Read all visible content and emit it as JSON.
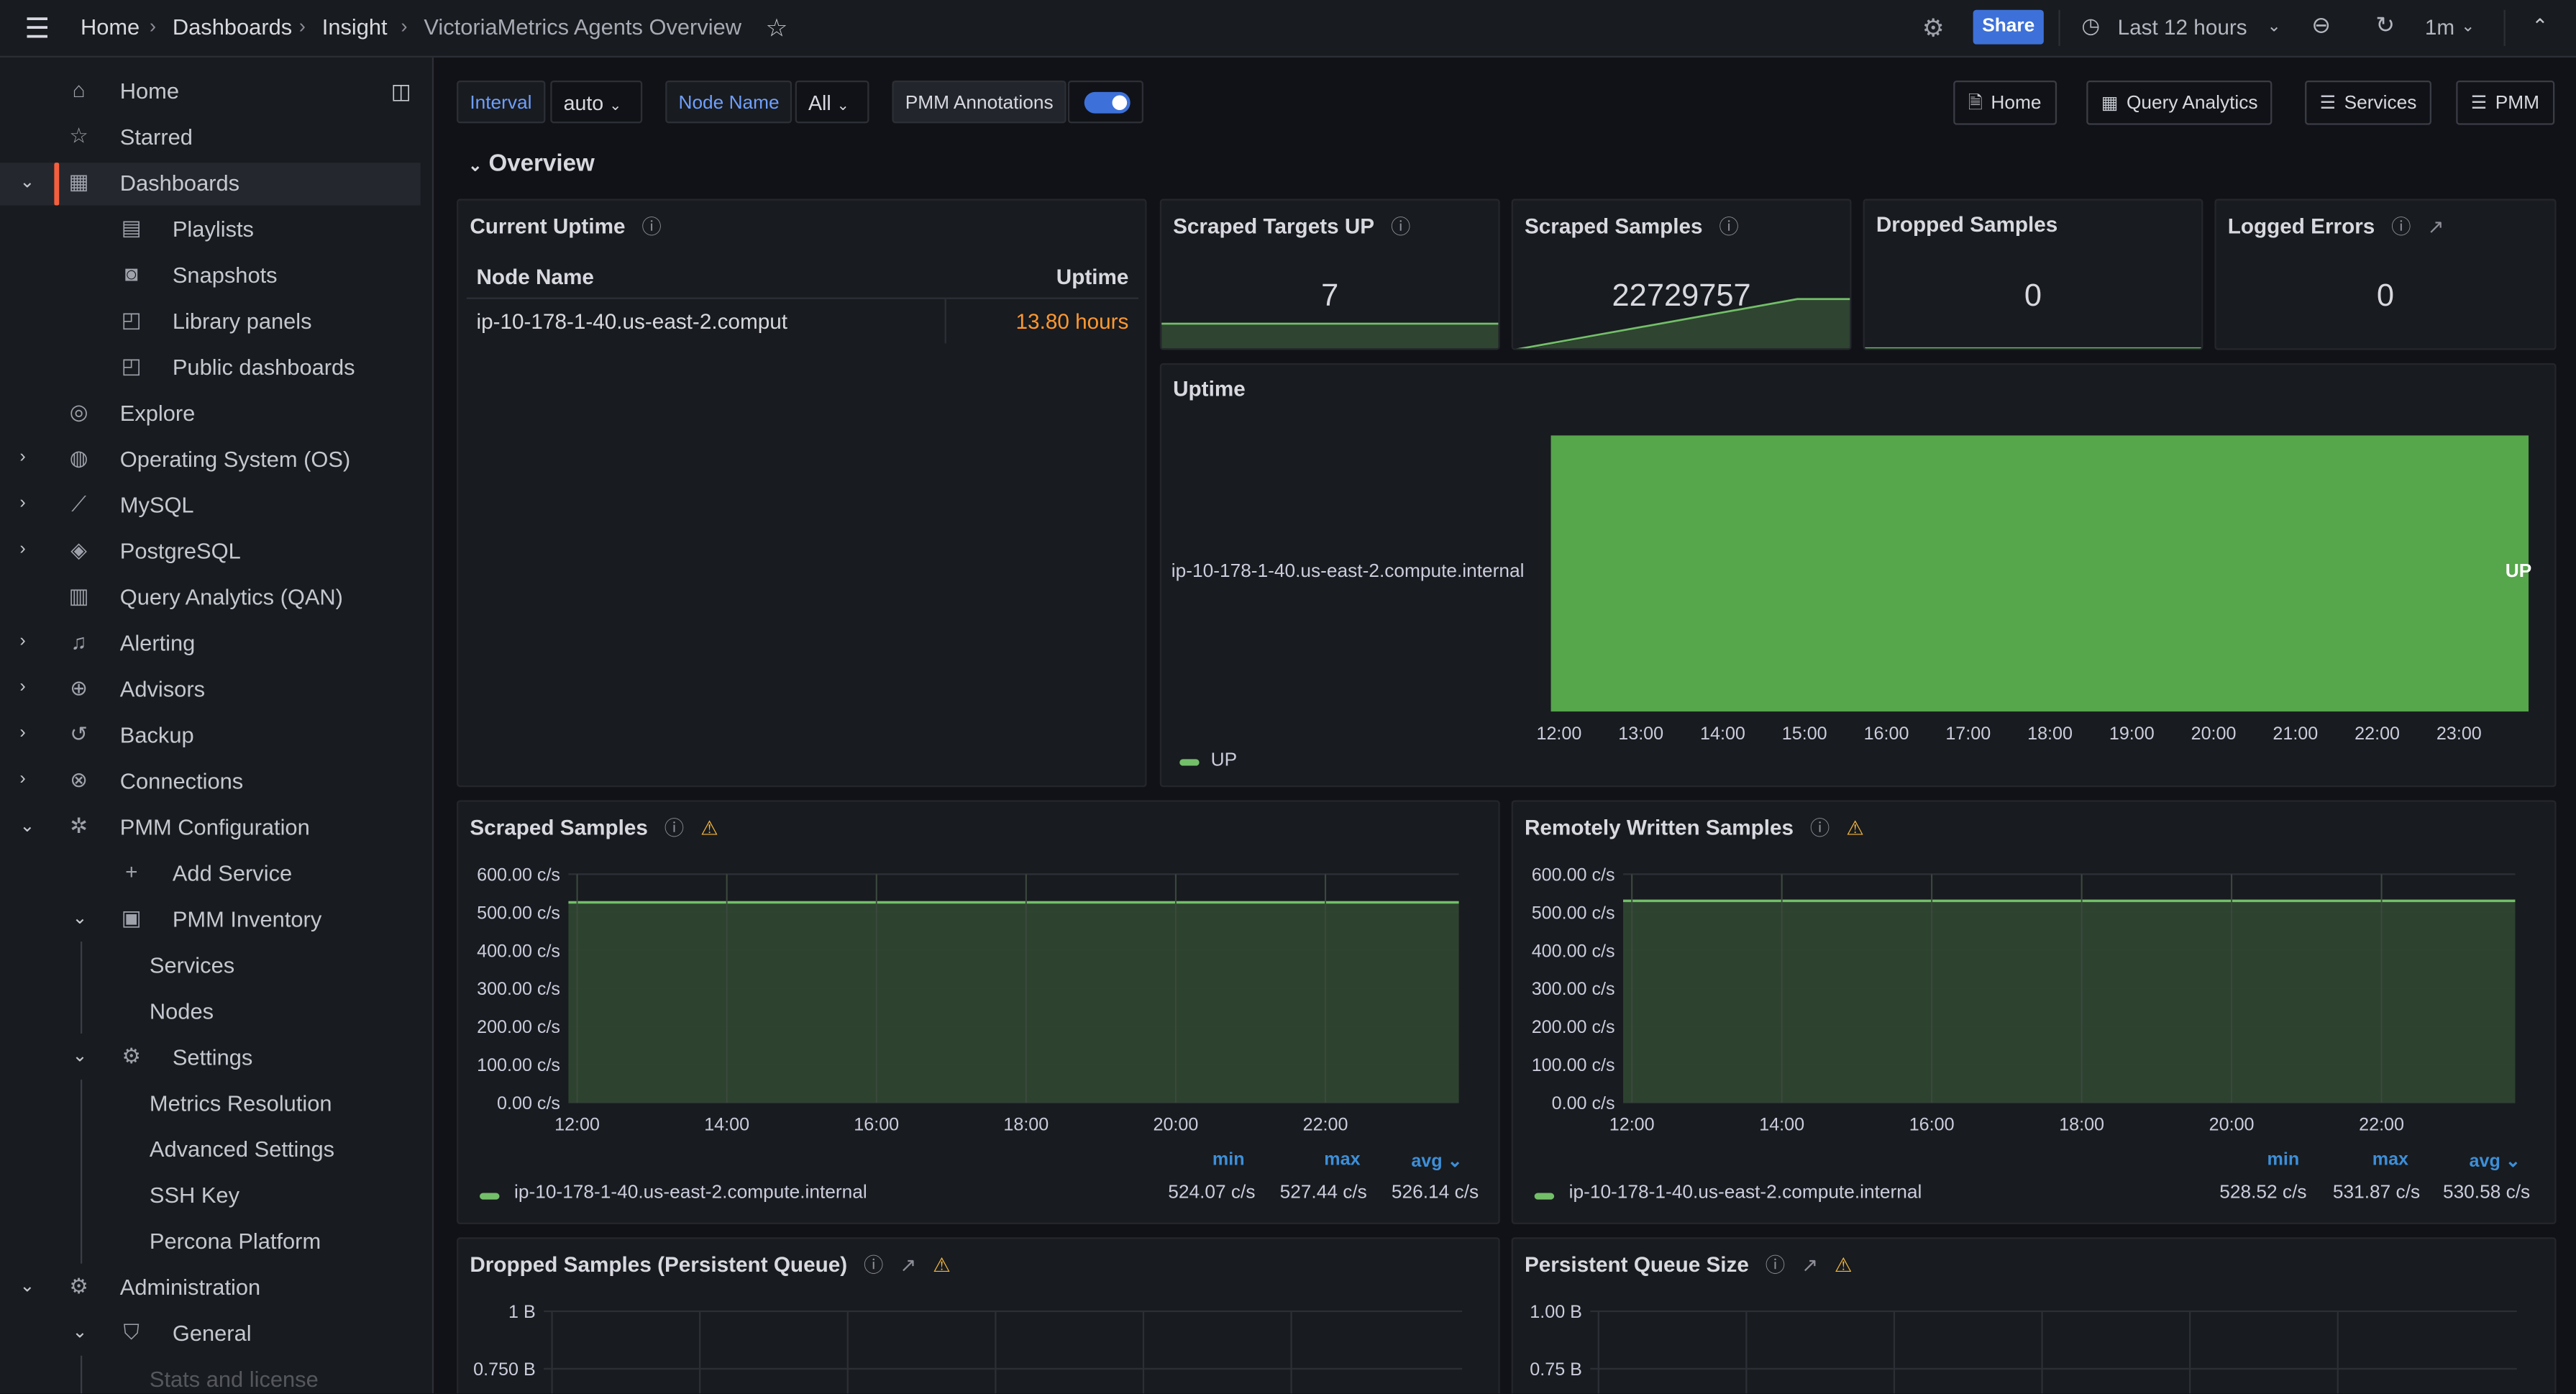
{
  "topbar": {
    "breadcrumbs": [
      "Home",
      "Dashboards",
      "Insight",
      "VictoriaMetrics Agents Overview"
    ],
    "share_label": "Share",
    "time_range": "Last 12 hours",
    "refresh_interval": "1m",
    "share_color": "#3d71d9"
  },
  "sidebar": {
    "items": [
      {
        "label": "Home",
        "icon": "home-icon",
        "level": 0
      },
      {
        "label": "Starred",
        "icon": "star-icon",
        "level": 0
      },
      {
        "label": "Dashboards",
        "icon": "dashboards-icon",
        "level": 0,
        "expanded": true,
        "active": true
      },
      {
        "label": "Playlists",
        "icon": "playlist-icon",
        "level": 1
      },
      {
        "label": "Snapshots",
        "icon": "camera-icon",
        "level": 1
      },
      {
        "label": "Library panels",
        "icon": "library-panels-icon",
        "level": 1
      },
      {
        "label": "Public dashboards",
        "icon": "public-dashboards-icon",
        "level": 1
      },
      {
        "label": "Explore",
        "icon": "compass-icon",
        "level": 0
      },
      {
        "label": "Operating System (OS)",
        "icon": "os-icon",
        "level": 0,
        "expanded": false
      },
      {
        "label": "MySQL",
        "icon": "mysql-icon",
        "level": 0,
        "expanded": false
      },
      {
        "label": "PostgreSQL",
        "icon": "postgresql-icon",
        "level": 0,
        "expanded": false
      },
      {
        "label": "Query Analytics (QAN)",
        "icon": "bar-chart-icon",
        "level": 0
      },
      {
        "label": "Alerting",
        "icon": "bell-icon",
        "level": 0,
        "expanded": false
      },
      {
        "label": "Advisors",
        "icon": "advisors-icon",
        "level": 0,
        "expanded": false
      },
      {
        "label": "Backup",
        "icon": "history-icon",
        "level": 0,
        "expanded": false
      },
      {
        "label": "Connections",
        "icon": "connections-icon",
        "level": 0,
        "expanded": false
      },
      {
        "label": "PMM Configuration",
        "icon": "pmm-config-icon",
        "level": 0,
        "expanded": true
      },
      {
        "label": "Add Service",
        "icon": "plus-icon",
        "level": 1
      },
      {
        "label": "PMM Inventory",
        "icon": "inventory-icon",
        "level": 1,
        "expanded": true
      },
      {
        "label": "Services",
        "level": 2
      },
      {
        "label": "Nodes",
        "level": 2
      },
      {
        "label": "Settings",
        "icon": "gear-icon",
        "level": 1,
        "expanded": true
      },
      {
        "label": "Metrics Resolution",
        "level": 2
      },
      {
        "label": "Advanced Settings",
        "level": 2
      },
      {
        "label": "SSH Key",
        "level": 2
      },
      {
        "label": "Percona Platform",
        "level": 2
      },
      {
        "label": "Administration",
        "icon": "gear-icon",
        "level": 0,
        "expanded": true
      },
      {
        "label": "General",
        "icon": "shield-icon",
        "level": 1,
        "expanded": true
      },
      {
        "label": "Stats and license",
        "level": 2,
        "faded": true
      }
    ]
  },
  "variables": {
    "interval_label": "Interval",
    "interval_value": "auto",
    "node_label": "Node Name",
    "node_value": "All",
    "annotations_label": "PMM Annotations",
    "annotations_on": true
  },
  "links": [
    "Home",
    "Query Analytics",
    "Services",
    "PMM"
  ],
  "row_title": "Overview",
  "panels": {
    "current_uptime": {
      "title": "Current Uptime",
      "col_node": "Node Name",
      "col_uptime": "Uptime",
      "node": "ip-10-178-1-40.us-east-2.comput",
      "uptime": "13.80 hours",
      "uptime_color": "#ff9830"
    },
    "scraped_targets": {
      "title": "Scraped Targets UP",
      "value": "7"
    },
    "scraped_samples_stat": {
      "title": "Scraped Samples",
      "value": "22729757"
    },
    "dropped_samples": {
      "title": "Dropped Samples",
      "value": "0"
    },
    "logged_errors": {
      "title": "Logged Errors",
      "value": "0"
    },
    "uptime": {
      "title": "Uptime",
      "row_label": "ip-10-178-1-40.us-east-2.compute.internal",
      "state": "UP",
      "legend": "UP",
      "color": "#56a64b"
    },
    "scraped_samples": {
      "title": "Scraped Samples",
      "legend": "ip-10-178-1-40.us-east-2.compute.internal",
      "headers": [
        "min",
        "max",
        "avg"
      ],
      "values": [
        "524.07 c/s",
        "527.44 c/s",
        "526.14 c/s"
      ]
    },
    "remote_written": {
      "title": "Remotely Written Samples",
      "legend": "ip-10-178-1-40.us-east-2.compute.internal",
      "headers": [
        "min",
        "max",
        "avg"
      ],
      "values": [
        "528.52 c/s",
        "531.87 c/s",
        "530.58 c/s"
      ]
    },
    "dropped_pq": {
      "title": "Dropped Samples (Persistent Queue)"
    },
    "pq_size": {
      "title": "Persistent Queue Size"
    }
  },
  "chart_data": [
    {
      "type": "area",
      "panel": "Scraped Samples",
      "x_ticks": [
        "12:00",
        "14:00",
        "16:00",
        "18:00",
        "20:00",
        "22:00"
      ],
      "y_ticks": [
        "0.00 c/s",
        "100.00 c/s",
        "200.00 c/s",
        "300.00 c/s",
        "400.00 c/s",
        "500.00 c/s",
        "600.00 c/s"
      ],
      "ylim": [
        0,
        600
      ],
      "xlim": [
        "11:53",
        "23:47"
      ],
      "grid": true,
      "series": [
        {
          "name": "ip-10-178-1-40.us-east-2.compute.internal",
          "color": "#73bf69",
          "x": [
            "11:53",
            "23:47"
          ],
          "y": [
            526,
            526
          ]
        }
      ]
    },
    {
      "type": "area",
      "panel": "Remotely Written Samples",
      "x_ticks": [
        "12:00",
        "14:00",
        "16:00",
        "18:00",
        "20:00",
        "22:00"
      ],
      "y_ticks": [
        "0.00 c/s",
        "100.00 c/s",
        "200.00 c/s",
        "300.00 c/s",
        "400.00 c/s",
        "500.00 c/s",
        "600.00 c/s"
      ],
      "ylim": [
        0,
        600
      ],
      "xlim": [
        "11:53",
        "23:47"
      ],
      "grid": true,
      "series": [
        {
          "name": "ip-10-178-1-40.us-east-2.compute.internal",
          "color": "#73bf69",
          "x": [
            "11:53",
            "23:47"
          ],
          "y": [
            530,
            530
          ]
        }
      ]
    },
    {
      "type": "line",
      "panel": "Dropped Samples (Persistent Queue)",
      "y_ticks": [
        "1 B",
        "0.750 B"
      ],
      "grid": true,
      "series": []
    },
    {
      "type": "line",
      "panel": "Persistent Queue Size",
      "y_ticks": [
        "1.00 B",
        "0.75 B"
      ],
      "grid": true,
      "series": []
    },
    {
      "type": "state-timeline",
      "panel": "Uptime",
      "x_ticks": [
        "12:00",
        "13:00",
        "14:00",
        "15:00",
        "16:00",
        "17:00",
        "18:00",
        "19:00",
        "20:00",
        "21:00",
        "22:00",
        "23:00"
      ],
      "states": [
        {
          "from": "11:54",
          "to": "23:51",
          "state": "UP"
        }
      ]
    }
  ]
}
